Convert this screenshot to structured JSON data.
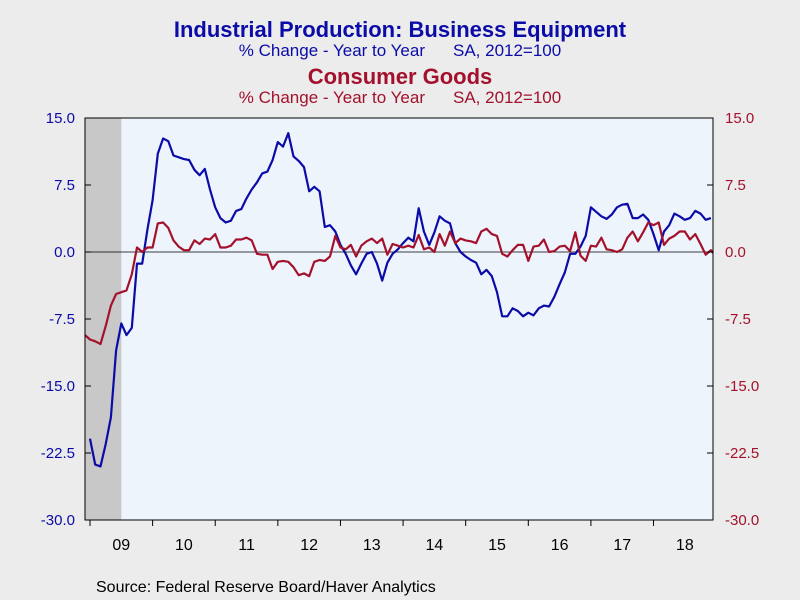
{
  "titles": {
    "series1_title": "Industrial Production: Business Equipment",
    "series1_sub_left": "% Change - Year to Year",
    "series1_sub_right": "SA, 2012=100",
    "series2_title": "Consumer Goods",
    "series2_sub_left": "% Change - Year to Year",
    "series2_sub_right": "SA, 2012=100"
  },
  "source": "Source:  Federal Reserve Board/Haver Analytics",
  "colors": {
    "business_equipment": "#0b0ba8",
    "consumer_goods": "#a3112c",
    "plot_background": "#eef4fc",
    "recession_shade": "#c8c8c8",
    "page_background": "#ececec"
  },
  "chart_data": {
    "type": "line",
    "x_unit": "year",
    "xlim": [
      2008.92,
      2018.95
    ],
    "x_tick_labels": [
      "09",
      "10",
      "11",
      "12",
      "13",
      "14",
      "15",
      "16",
      "17",
      "18"
    ],
    "x_tick_label_positions": [
      2009.5,
      2010.5,
      2011.5,
      2012.5,
      2013.5,
      2014.5,
      2015.5,
      2016.5,
      2017.5,
      2018.5
    ],
    "ylim": [
      -30,
      15
    ],
    "y_left_ticks": [
      "15.0",
      "7.5",
      "0.0",
      "-7.5",
      "-15.0",
      "-22.5",
      "-30.0"
    ],
    "y_right_ticks": [
      "15.0",
      "7.5",
      "0.0",
      "-7.5",
      "-15.0",
      "-22.5",
      "-30.0"
    ],
    "y_left_axis_color": "#0b0ba8",
    "y_right_axis_color": "#a3112c",
    "zero_line": true,
    "grid": false,
    "recession_band": [
      2008.92,
      2009.5
    ],
    "series": [
      {
        "name": "Industrial Production: Business Equipment",
        "axis": "left",
        "color": "#0b0ba8",
        "points": [
          [
            2009.0,
            -20.9
          ],
          [
            2009.083,
            -23.8
          ],
          [
            2009.167,
            -24.0
          ],
          [
            2009.25,
            -21.5
          ],
          [
            2009.333,
            -18.5
          ],
          [
            2009.417,
            -11.0
          ],
          [
            2009.5,
            -8.0
          ],
          [
            2009.583,
            -9.3
          ],
          [
            2009.667,
            -8.5
          ],
          [
            2009.75,
            -1.3
          ],
          [
            2009.833,
            -1.3
          ],
          [
            2009.917,
            2.5
          ],
          [
            2010.0,
            5.8
          ],
          [
            2010.083,
            11.0
          ],
          [
            2010.167,
            12.7
          ],
          [
            2010.25,
            12.4
          ],
          [
            2010.333,
            10.8
          ],
          [
            2010.5,
            10.4
          ],
          [
            2010.583,
            10.3
          ],
          [
            2010.667,
            9.2
          ],
          [
            2010.75,
            8.6
          ],
          [
            2010.833,
            9.3
          ],
          [
            2010.917,
            7.0
          ],
          [
            2011.0,
            5.0
          ],
          [
            2011.083,
            3.8
          ],
          [
            2011.167,
            3.3
          ],
          [
            2011.25,
            3.5
          ],
          [
            2011.333,
            4.6
          ],
          [
            2011.417,
            4.8
          ],
          [
            2011.5,
            6.0
          ],
          [
            2011.583,
            7.0
          ],
          [
            2011.667,
            7.8
          ],
          [
            2011.75,
            8.8
          ],
          [
            2011.833,
            9.0
          ],
          [
            2011.917,
            10.3
          ],
          [
            2012.0,
            12.3
          ],
          [
            2012.083,
            11.8
          ],
          [
            2012.167,
            13.3
          ],
          [
            2012.25,
            10.7
          ],
          [
            2012.333,
            10.2
          ],
          [
            2012.417,
            9.5
          ],
          [
            2012.5,
            6.8
          ],
          [
            2012.583,
            7.3
          ],
          [
            2012.667,
            6.8
          ],
          [
            2012.75,
            2.8
          ],
          [
            2012.833,
            3.0
          ],
          [
            2012.917,
            2.3
          ],
          [
            2013.0,
            0.8
          ],
          [
            2013.083,
            -0.2
          ],
          [
            2013.167,
            -1.5
          ],
          [
            2013.25,
            -2.5
          ],
          [
            2013.333,
            -1.3
          ],
          [
            2013.417,
            -0.2
          ],
          [
            2013.5,
            0.0
          ],
          [
            2013.583,
            -1.3
          ],
          [
            2013.667,
            -3.2
          ],
          [
            2013.75,
            -1.2
          ],
          [
            2013.833,
            -0.2
          ],
          [
            2013.917,
            0.3
          ],
          [
            2014.0,
            1.0
          ],
          [
            2014.083,
            1.6
          ],
          [
            2014.167,
            1.2
          ],
          [
            2014.25,
            4.9
          ],
          [
            2014.333,
            2.3
          ],
          [
            2014.417,
            0.8
          ],
          [
            2014.5,
            2.2
          ],
          [
            2014.583,
            4.0
          ],
          [
            2014.667,
            3.5
          ],
          [
            2014.75,
            3.2
          ],
          [
            2014.833,
            1.0
          ],
          [
            2014.917,
            0.0
          ],
          [
            2015.0,
            -0.5
          ],
          [
            2015.083,
            -0.9
          ],
          [
            2015.167,
            -1.2
          ],
          [
            2015.25,
            -2.5
          ],
          [
            2015.333,
            -2.0
          ],
          [
            2015.417,
            -2.7
          ],
          [
            2015.5,
            -4.5
          ],
          [
            2015.583,
            -7.2
          ],
          [
            2015.667,
            -7.2
          ],
          [
            2015.75,
            -6.3
          ],
          [
            2015.833,
            -6.6
          ],
          [
            2015.917,
            -7.2
          ],
          [
            2016.0,
            -6.8
          ],
          [
            2016.083,
            -7.1
          ],
          [
            2016.167,
            -6.3
          ],
          [
            2016.25,
            -6.0
          ],
          [
            2016.333,
            -6.1
          ],
          [
            2016.417,
            -5.0
          ],
          [
            2016.5,
            -3.6
          ],
          [
            2016.583,
            -2.3
          ],
          [
            2016.667,
            -0.2
          ],
          [
            2016.75,
            -0.2
          ],
          [
            2016.833,
            0.6
          ],
          [
            2016.917,
            1.8
          ],
          [
            2017.0,
            5.0
          ],
          [
            2017.083,
            4.5
          ],
          [
            2017.167,
            4.0
          ],
          [
            2017.25,
            3.7
          ],
          [
            2017.333,
            4.2
          ],
          [
            2017.417,
            5.0
          ],
          [
            2017.5,
            5.3
          ],
          [
            2017.583,
            5.4
          ],
          [
            2017.667,
            3.8
          ],
          [
            2017.75,
            3.8
          ],
          [
            2017.833,
            4.2
          ],
          [
            2017.917,
            3.6
          ],
          [
            2018.0,
            2.0
          ],
          [
            2018.083,
            0.2
          ],
          [
            2018.167,
            2.3
          ],
          [
            2018.25,
            3.0
          ],
          [
            2018.333,
            4.3
          ],
          [
            2018.417,
            4.0
          ],
          [
            2018.5,
            3.6
          ],
          [
            2018.583,
            3.8
          ],
          [
            2018.667,
            4.6
          ],
          [
            2018.75,
            4.3
          ],
          [
            2018.833,
            3.6
          ],
          [
            2018.917,
            3.8
          ]
        ]
      },
      {
        "name": "Consumer Goods",
        "axis": "right",
        "color": "#a3112c",
        "points": [
          [
            2008.92,
            -9.3
          ],
          [
            2009.0,
            -9.8
          ],
          [
            2009.083,
            -10.0
          ],
          [
            2009.167,
            -10.3
          ],
          [
            2009.25,
            -8.3
          ],
          [
            2009.333,
            -6.0
          ],
          [
            2009.417,
            -4.7
          ],
          [
            2009.5,
            -4.5
          ],
          [
            2009.583,
            -4.3
          ],
          [
            2009.667,
            -2.5
          ],
          [
            2009.75,
            0.5
          ],
          [
            2009.833,
            0.0
          ],
          [
            2009.917,
            0.5
          ],
          [
            2010.0,
            0.5
          ],
          [
            2010.083,
            3.2
          ],
          [
            2010.167,
            3.3
          ],
          [
            2010.25,
            2.7
          ],
          [
            2010.333,
            1.3
          ],
          [
            2010.417,
            0.6
          ],
          [
            2010.5,
            0.2
          ],
          [
            2010.583,
            0.2
          ],
          [
            2010.667,
            1.3
          ],
          [
            2010.75,
            0.9
          ],
          [
            2010.833,
            1.5
          ],
          [
            2010.917,
            1.4
          ],
          [
            2011.0,
            2.0
          ],
          [
            2011.083,
            0.5
          ],
          [
            2011.167,
            0.5
          ],
          [
            2011.25,
            0.7
          ],
          [
            2011.333,
            1.4
          ],
          [
            2011.417,
            1.4
          ],
          [
            2011.5,
            1.6
          ],
          [
            2011.583,
            1.3
          ],
          [
            2011.667,
            -0.2
          ],
          [
            2011.75,
            -0.3
          ],
          [
            2011.833,
            -0.3
          ],
          [
            2011.917,
            -1.9
          ],
          [
            2012.0,
            -1.1
          ],
          [
            2012.083,
            -1.0
          ],
          [
            2012.167,
            -1.1
          ],
          [
            2012.25,
            -1.7
          ],
          [
            2012.333,
            -2.6
          ],
          [
            2012.417,
            -2.4
          ],
          [
            2012.5,
            -2.7
          ],
          [
            2012.583,
            -1.1
          ],
          [
            2012.667,
            -0.9
          ],
          [
            2012.75,
            -1.0
          ],
          [
            2012.833,
            -0.5
          ],
          [
            2012.917,
            1.8
          ],
          [
            2013.0,
            0.5
          ],
          [
            2013.083,
            0.3
          ],
          [
            2013.167,
            0.8
          ],
          [
            2013.25,
            -0.5
          ],
          [
            2013.333,
            0.7
          ],
          [
            2013.417,
            1.2
          ],
          [
            2013.5,
            1.5
          ],
          [
            2013.583,
            1.0
          ],
          [
            2013.667,
            1.5
          ],
          [
            2013.75,
            -0.3
          ],
          [
            2013.833,
            0.9
          ],
          [
            2013.917,
            0.7
          ],
          [
            2014.0,
            0.5
          ],
          [
            2014.083,
            0.7
          ],
          [
            2014.167,
            0.5
          ],
          [
            2014.25,
            1.9
          ],
          [
            2014.333,
            0.3
          ],
          [
            2014.417,
            0.5
          ],
          [
            2014.5,
            0.0
          ],
          [
            2014.583,
            2.0
          ],
          [
            2014.667,
            0.7
          ],
          [
            2014.75,
            2.3
          ],
          [
            2014.833,
            1.0
          ],
          [
            2014.917,
            1.5
          ],
          [
            2015.0,
            1.3
          ],
          [
            2015.083,
            1.2
          ],
          [
            2015.167,
            1.0
          ],
          [
            2015.25,
            2.3
          ],
          [
            2015.333,
            2.6
          ],
          [
            2015.417,
            2.0
          ],
          [
            2015.5,
            1.8
          ],
          [
            2015.583,
            -0.2
          ],
          [
            2015.667,
            -0.5
          ],
          [
            2015.75,
            0.2
          ],
          [
            2015.833,
            0.8
          ],
          [
            2015.917,
            0.8
          ],
          [
            2016.0,
            -1.0
          ],
          [
            2016.083,
            0.6
          ],
          [
            2016.167,
            0.7
          ],
          [
            2016.25,
            1.4
          ],
          [
            2016.333,
            0.0
          ],
          [
            2016.417,
            0.1
          ],
          [
            2016.5,
            0.6
          ],
          [
            2016.583,
            0.7
          ],
          [
            2016.667,
            0.1
          ],
          [
            2016.75,
            2.2
          ],
          [
            2016.833,
            -0.4
          ],
          [
            2016.917,
            -1.0
          ],
          [
            2017.0,
            0.7
          ],
          [
            2017.083,
            0.6
          ],
          [
            2017.167,
            1.6
          ],
          [
            2017.25,
            0.3
          ],
          [
            2017.333,
            0.2
          ],
          [
            2017.417,
            0.0
          ],
          [
            2017.5,
            0.3
          ],
          [
            2017.583,
            1.6
          ],
          [
            2017.667,
            2.3
          ],
          [
            2017.75,
            1.2
          ],
          [
            2017.833,
            2.2
          ],
          [
            2017.917,
            3.3
          ],
          [
            2018.0,
            3.0
          ],
          [
            2018.083,
            3.3
          ],
          [
            2018.167,
            0.8
          ],
          [
            2018.25,
            1.5
          ],
          [
            2018.333,
            1.8
          ],
          [
            2018.417,
            2.3
          ],
          [
            2018.5,
            2.3
          ],
          [
            2018.583,
            1.4
          ],
          [
            2018.667,
            2.0
          ],
          [
            2018.75,
            0.9
          ],
          [
            2018.833,
            -0.3
          ],
          [
            2018.917,
            0.2
          ],
          [
            2018.95,
            -0.1
          ]
        ]
      }
    ]
  }
}
